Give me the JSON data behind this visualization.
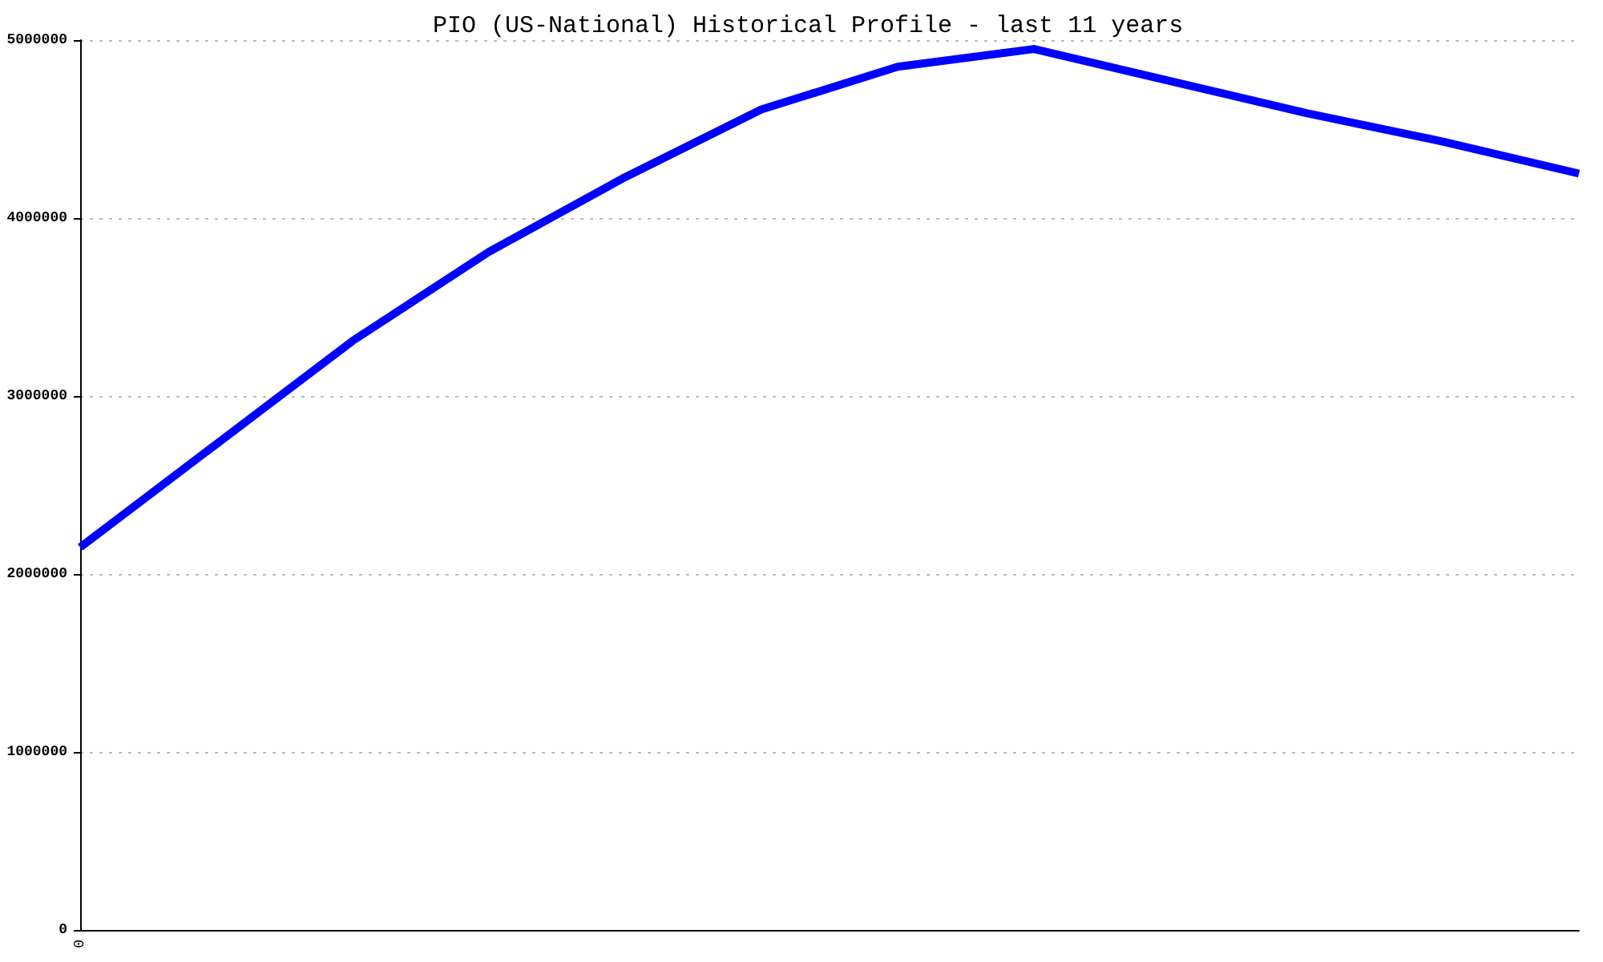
{
  "chart_data": {
    "type": "line",
    "title": "PIO (US-National) Historical Profile - last 11 years",
    "categories": [
      "0",
      null,
      null,
      null,
      null,
      null,
      null,
      null,
      null,
      null,
      null,
      null
    ],
    "series": [
      {
        "color": "#0000ff",
        "values": [
          2150000,
          2730000,
          3310000,
          3810000,
          4230000,
          4610000,
          4850000,
          4950000,
          4770000,
          4590000,
          4430000,
          4250000
        ]
      }
    ],
    "ylim": [
      0,
      5000000
    ],
    "yticks": [
      0,
      1000000,
      2000000,
      3000000,
      4000000,
      5000000
    ],
    "grid": "y",
    "marker": "none",
    "line_style": "solid"
  }
}
